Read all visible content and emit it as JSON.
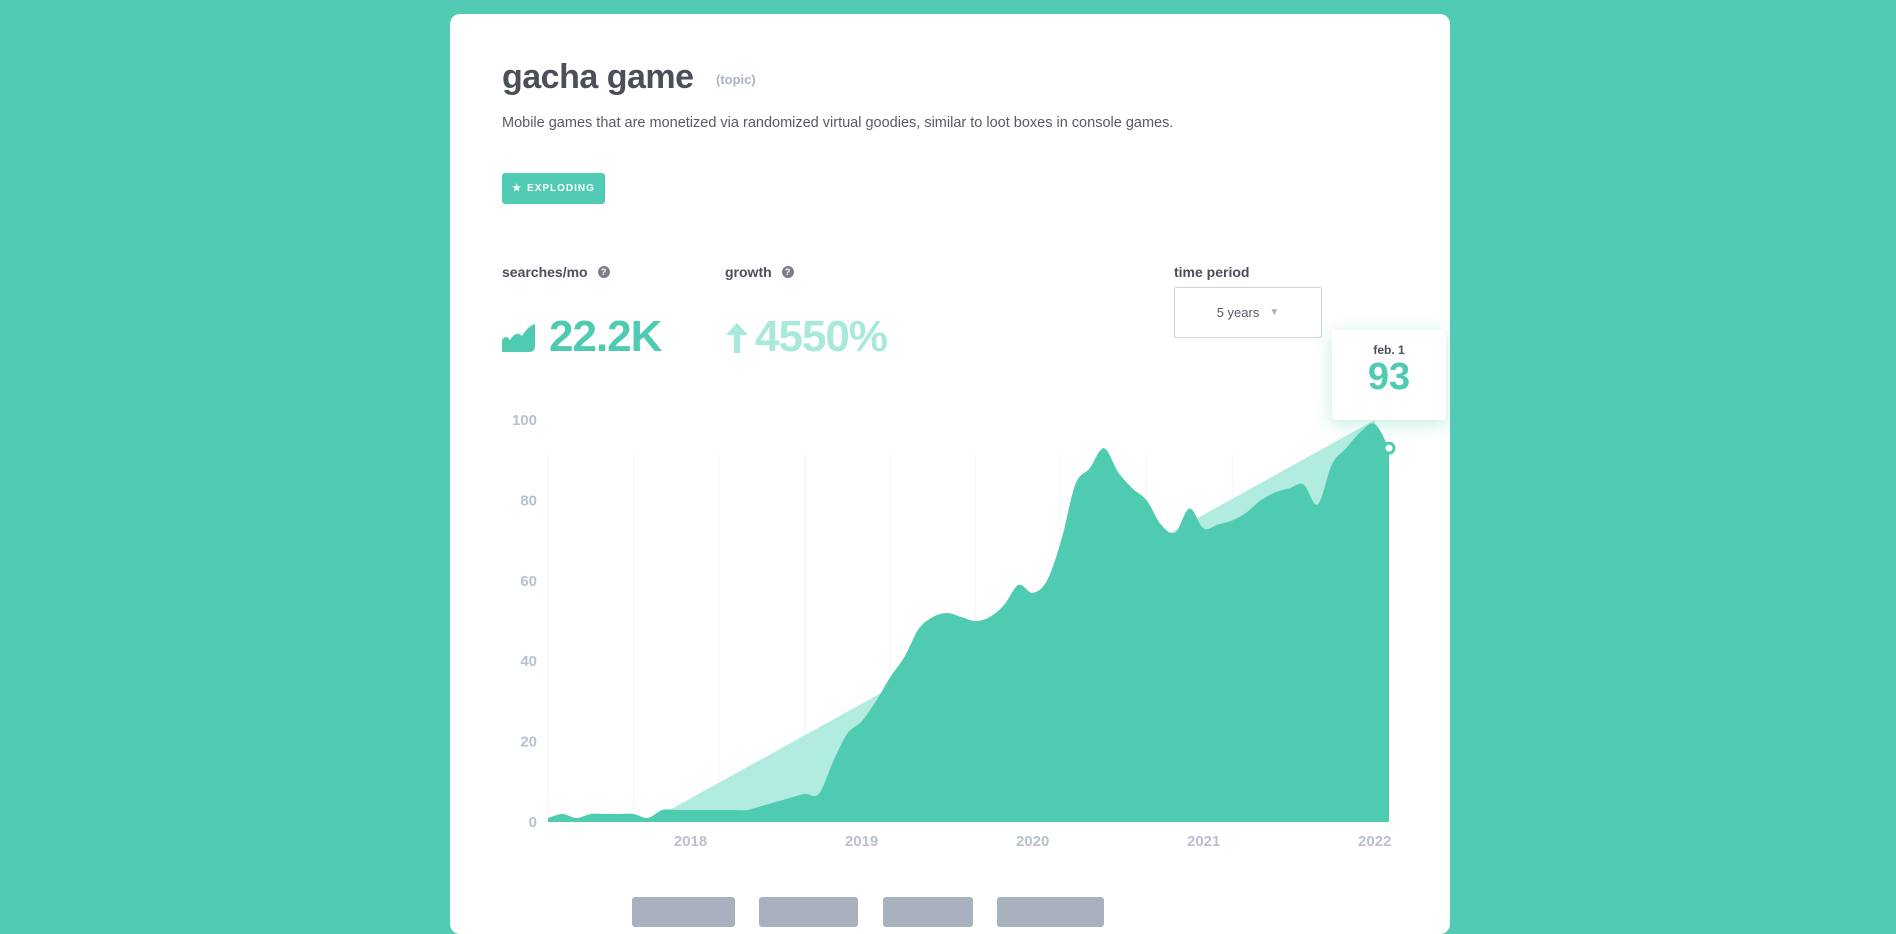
{
  "header": {
    "title": "gacha game",
    "type_tag": "(topic)",
    "description": "Mobile games that are monetized via randomized virtual goodies, similar to loot boxes in console games."
  },
  "badge": {
    "label": "EXPLODING",
    "icon": "star-icon"
  },
  "metrics": {
    "searches": {
      "label": "searches/mo",
      "value": "22.2K",
      "icon": "volume-icon"
    },
    "growth": {
      "label": "growth",
      "value": "4550%",
      "icon": "arrow-up-icon"
    },
    "time_period": {
      "label": "time period",
      "selected": "5 years"
    }
  },
  "colors": {
    "background": "#52cbb4",
    "area": "#4fcbb2",
    "trend": "#b2ece1",
    "growth_text": "#a8e9dc"
  },
  "tooltip": {
    "date": "feb. 1",
    "value": "93"
  },
  "chart_data": {
    "type": "area",
    "ylim": [
      0,
      100
    ],
    "yticks": [
      "0",
      "20",
      "40",
      "60",
      "80",
      "100"
    ],
    "xticks": [
      "2018",
      "2019",
      "2020",
      "2021",
      "2022"
    ],
    "grid": "vertical, faint",
    "x": [
      "2017-03",
      "2017-04",
      "2017-05",
      "2017-06",
      "2017-07",
      "2017-08",
      "2017-09",
      "2017-10",
      "2017-11",
      "2017-12",
      "2018-01",
      "2018-02",
      "2018-03",
      "2018-04",
      "2018-05",
      "2018-06",
      "2018-07",
      "2018-08",
      "2018-09",
      "2018-10",
      "2018-11",
      "2018-12",
      "2019-01",
      "2019-02",
      "2019-03",
      "2019-04",
      "2019-05",
      "2019-06",
      "2019-07",
      "2019-08",
      "2019-09",
      "2019-10",
      "2019-11",
      "2019-12",
      "2020-01",
      "2020-02",
      "2020-03",
      "2020-04",
      "2020-05",
      "2020-06",
      "2020-07",
      "2020-08",
      "2020-09",
      "2020-10",
      "2020-11",
      "2020-12",
      "2021-01",
      "2021-02",
      "2021-03",
      "2021-04",
      "2021-05",
      "2021-06",
      "2021-07",
      "2021-08",
      "2021-09",
      "2021-10",
      "2021-11",
      "2021-12",
      "2022-01",
      "2022-02"
    ],
    "series": [
      {
        "values": [
          1,
          2,
          1,
          2,
          2,
          2,
          2,
          1,
          3,
          3,
          3,
          3,
          3,
          3,
          3,
          4,
          5,
          6,
          7,
          7,
          15,
          22,
          25,
          30,
          36,
          41,
          48,
          51,
          52,
          51,
          50,
          51,
          54,
          59,
          57,
          60,
          70,
          84,
          88,
          93,
          87,
          83,
          80,
          74,
          72,
          78,
          73,
          74,
          75,
          77,
          80,
          82,
          83,
          84,
          79,
          89,
          93,
          97,
          99,
          93
        ]
      }
    ],
    "trend": {
      "x": [
        "2017-10",
        "2022-01"
      ],
      "values": [
        1,
        100
      ]
    }
  },
  "footer_buttons": [
    {},
    {},
    {},
    {}
  ]
}
